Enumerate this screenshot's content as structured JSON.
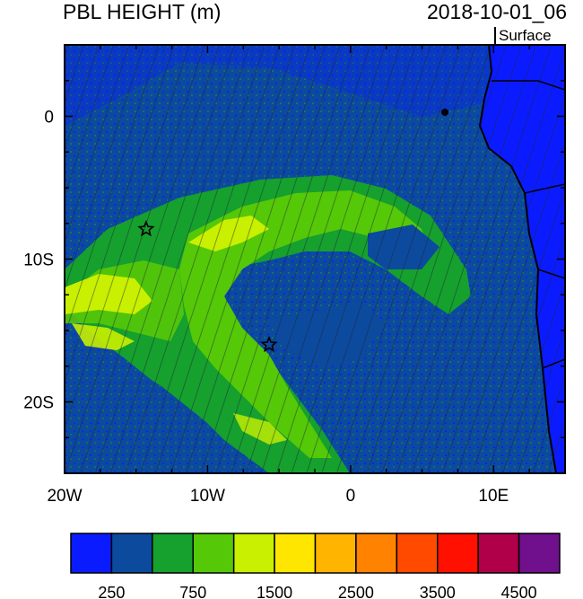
{
  "title_left": "PBL HEIGHT (m)",
  "title_right": "2018-10-01_06",
  "level_label": "Surface",
  "map": {
    "lon_range": [
      -20,
      15
    ],
    "lat_range": [
      -25,
      5
    ],
    "lon_ticks": [
      {
        "value": -20,
        "label": "20W"
      },
      {
        "value": -10,
        "label": "10W"
      },
      {
        "value": 0,
        "label": "0"
      },
      {
        "value": 10,
        "label": "10E"
      }
    ],
    "lat_ticks": [
      {
        "value": 0,
        "label": "0"
      },
      {
        "value": -10,
        "label": "10S"
      },
      {
        "value": -20,
        "label": "20S"
      }
    ],
    "stations": [
      {
        "lon": -14.3,
        "lat": -7.9
      },
      {
        "lon": -5.7,
        "lat": -16.0
      }
    ]
  },
  "colorbar": {
    "colors": [
      "#0a1cff",
      "#0c4a9e",
      "#16a02e",
      "#55c808",
      "#c8f000",
      "#ffe600",
      "#ffb400",
      "#ff8200",
      "#ff4a00",
      "#ff1000",
      "#b0004a",
      "#70108c"
    ],
    "labels": [
      "250",
      "750",
      "1500",
      "2500",
      "3500",
      "4500"
    ]
  }
}
